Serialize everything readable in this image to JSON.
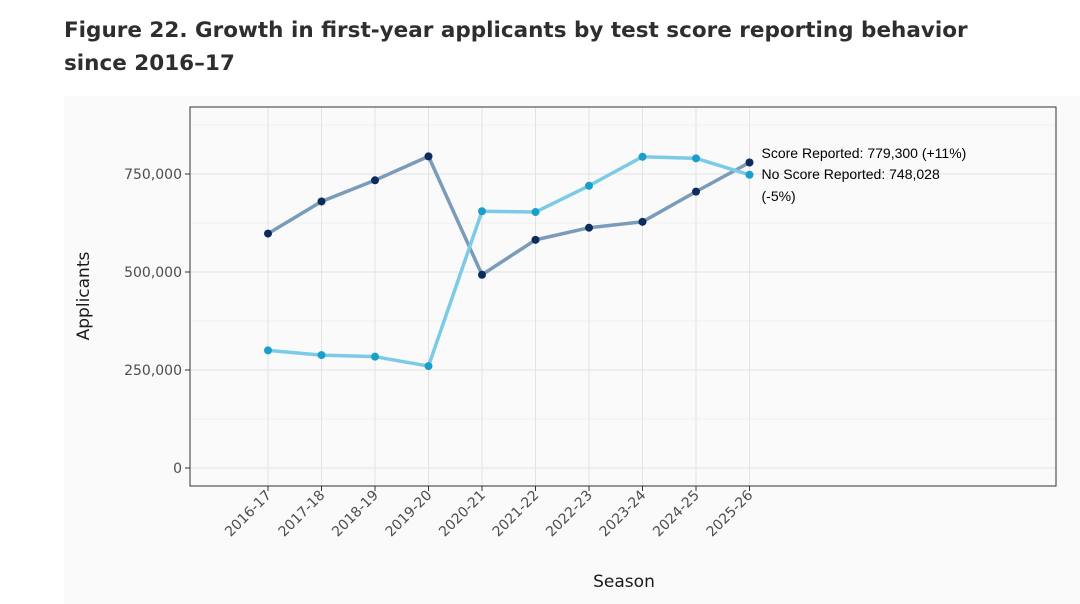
{
  "figure": {
    "title": "Figure 22. Growth in first-year applicants by test score reporting behavior since 2016–17"
  },
  "chart_data": {
    "type": "line",
    "categories": [
      "2016-17",
      "2017-18",
      "2018-19",
      "2019-20",
      "2020-21",
      "2021-22",
      "2022-23",
      "2023-24",
      "2024-25",
      "2025-26"
    ],
    "xlabel": "Season",
    "ylabel": "Applicants",
    "ylim": [
      0,
      900000
    ],
    "yticks": [
      0,
      250000,
      500000,
      750000
    ],
    "ytick_labels": [
      "0",
      "250,000",
      "500,000",
      "750,000"
    ],
    "grid": true,
    "legend": "none",
    "series": [
      {
        "name": "Score Reported",
        "end_label": "Score Reported: 779,300 (+11%)",
        "line_color": "#7b9bba",
        "marker_color": "#0d2c5c",
        "values": [
          598000,
          680000,
          734000,
          795000,
          493000,
          582000,
          613000,
          628000,
          705000,
          779300
        ]
      },
      {
        "name": "No Score Reported",
        "end_label": "No Score Reported: 748,028",
        "end_label_line2": "(-5%)",
        "line_color": "#7ccbe6",
        "marker_color": "#1a9fcb",
        "values": [
          300000,
          288000,
          284000,
          260000,
          655000,
          653000,
          720000,
          794000,
          790000,
          748028
        ]
      }
    ]
  }
}
